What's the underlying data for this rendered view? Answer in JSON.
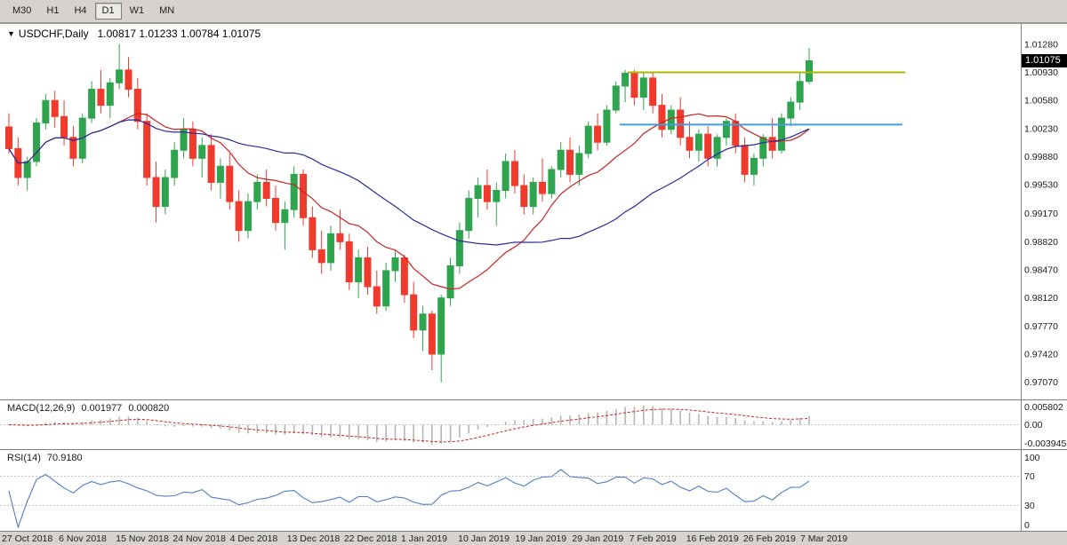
{
  "app": {
    "toolbar": {
      "timeframes": [
        {
          "label": "M30",
          "active": false
        },
        {
          "label": "H1",
          "active": false
        },
        {
          "label": "H4",
          "active": false
        },
        {
          "label": "D1",
          "active": true
        },
        {
          "label": "W1",
          "active": false
        },
        {
          "label": "MN",
          "active": false
        }
      ]
    }
  },
  "header": {
    "dropdown_icon": "▼",
    "symbol": "USDCHF,Daily",
    "ohlc": "1.00817 1.01233 1.00784 1.01075"
  },
  "price_axis": {
    "ticks": [
      "1.01280",
      "1.00930",
      "1.00580",
      "1.00230",
      "0.99880",
      "0.99530",
      "0.99170",
      "0.98820",
      "0.98470",
      "0.98120",
      "0.97770",
      "0.97420",
      "0.97070"
    ],
    "current_price": "1.01075"
  },
  "indicators": {
    "macd": {
      "title": "MACD(12,26,9)",
      "value_main": "0.001977",
      "value_signal": "0.000820",
      "axis_ticks": [
        "0.005802",
        "0.00",
        "-0.003945"
      ]
    },
    "rsi": {
      "title": "RSI(14)",
      "value": "70.9180",
      "axis_ticks": [
        "100",
        "70",
        "30",
        "0"
      ]
    }
  },
  "colors": {
    "bull": "#2fa44f",
    "bear": "#ef3a2d",
    "ma_fast": "#c92323",
    "ma_slow": "#2b2b99",
    "macd_hist": "#b5b5b5",
    "macd_signal": "#d02020",
    "rsi_line": "#4f7fbf",
    "hline_yellow": "#adb800",
    "hline_blue": "#3f9fdf",
    "axis_text": "#1a1a1a",
    "chrome": "#d6d3ce",
    "separator": "#808080"
  },
  "chart_data": {
    "type": "candlestick",
    "symbol": "USDCHF",
    "timeframe": "Daily",
    "title": "USDCHF,Daily",
    "last_bar_ohlc": {
      "open": 1.00817,
      "high": 1.01233,
      "low": 1.00784,
      "close": 1.01075
    },
    "ylim": [
      0.969,
      1.015
    ],
    "x_tick_labels": [
      "27 Oct 2018",
      "6 Nov 2018",
      "15 Nov 2018",
      "24 Nov 2018",
      "4 Dec 2018",
      "13 Dec 2018",
      "22 Dec 2018",
      "1 Jan 2019",
      "10 Jan 2019",
      "19 Jan 2019",
      "29 Jan 2019",
      "7 Feb 2019",
      "16 Feb 2019",
      "26 Feb 2019",
      "7 Mar 2019"
    ],
    "candles": [
      [
        1.0025,
        1.0042,
        0.9992,
        0.9998
      ],
      [
        0.9998,
        1.0012,
        0.9952,
        0.9962
      ],
      [
        0.9962,
        0.9988,
        0.9946,
        0.9982
      ],
      [
        0.9982,
        1.0036,
        0.9976,
        1.003
      ],
      [
        1.003,
        1.0066,
        1.0022,
        1.0058
      ],
      [
        1.0058,
        1.007,
        1.0024,
        1.0038
      ],
      [
        1.0038,
        1.0058,
        1.0002,
        1.0012
      ],
      [
        1.0012,
        1.0026,
        0.9976,
        0.9986
      ],
      [
        0.9986,
        1.0042,
        0.998,
        1.0036
      ],
      [
        1.0036,
        1.0082,
        1.003,
        1.0072
      ],
      [
        1.0072,
        1.0096,
        1.0042,
        1.0052
      ],
      [
        1.0052,
        1.0086,
        1.0036,
        1.008
      ],
      [
        1.008,
        1.0128,
        1.0072,
        1.0096
      ],
      [
        1.0096,
        1.0112,
        1.0062,
        1.0072
      ],
      [
        1.0072,
        1.0086,
        1.0022,
        1.0032
      ],
      [
        1.0032,
        1.0042,
        0.9952,
        0.9962
      ],
      [
        0.9962,
        0.9982,
        0.9906,
        0.9926
      ],
      [
        0.9926,
        0.9972,
        0.9916,
        0.9962
      ],
      [
        0.9962,
        1.0006,
        0.9952,
        0.9996
      ],
      [
        0.9996,
        1.0036,
        0.9986,
        1.0022
      ],
      [
        1.0022,
        1.0032,
        0.9976,
        0.9986
      ],
      [
        0.9986,
        1.0012,
        0.9962,
        1.0002
      ],
      [
        1.0002,
        1.0016,
        0.9946,
        0.9956
      ],
      [
        0.9956,
        0.9986,
        0.9936,
        0.9976
      ],
      [
        0.9976,
        0.9992,
        0.9922,
        0.9932
      ],
      [
        0.9932,
        0.9946,
        0.9882,
        0.9896
      ],
      [
        0.9896,
        0.9942,
        0.9886,
        0.9932
      ],
      [
        0.9932,
        0.9966,
        0.9922,
        0.9956
      ],
      [
        0.9956,
        0.9972,
        0.9926,
        0.9936
      ],
      [
        0.9936,
        0.9952,
        0.9896,
        0.9906
      ],
      [
        0.9906,
        0.9932,
        0.9872,
        0.9922
      ],
      [
        0.9922,
        0.9976,
        0.9912,
        0.9966
      ],
      [
        0.9966,
        0.9972,
        0.9902,
        0.9912
      ],
      [
        0.9912,
        0.9926,
        0.9862,
        0.9872
      ],
      [
        0.9872,
        0.9896,
        0.9842,
        0.9856
      ],
      [
        0.9856,
        0.9902,
        0.9846,
        0.9892
      ],
      [
        0.9892,
        0.9922,
        0.9872,
        0.9882
      ],
      [
        0.9882,
        0.9892,
        0.9822,
        0.9832
      ],
      [
        0.9832,
        0.9872,
        0.9812,
        0.9862
      ],
      [
        0.9862,
        0.9876,
        0.9816,
        0.9826
      ],
      [
        0.9826,
        0.9846,
        0.9792,
        0.9802
      ],
      [
        0.9802,
        0.9856,
        0.9796,
        0.9846
      ],
      [
        0.9846,
        0.9872,
        0.9832,
        0.9862
      ],
      [
        0.9862,
        0.9866,
        0.9806,
        0.9816
      ],
      [
        0.9816,
        0.9832,
        0.9762,
        0.9772
      ],
      [
        0.9772,
        0.9802,
        0.9746,
        0.9792
      ],
      [
        0.9792,
        0.9796,
        0.9722,
        0.9742
      ],
      [
        0.9742,
        0.9816,
        0.9707,
        0.9812
      ],
      [
        0.9812,
        0.9862,
        0.9802,
        0.9852
      ],
      [
        0.9852,
        0.9906,
        0.9842,
        0.9896
      ],
      [
        0.9896,
        0.9946,
        0.9886,
        0.9936
      ],
      [
        0.9936,
        0.9962,
        0.9912,
        0.9952
      ],
      [
        0.9952,
        0.9972,
        0.9922,
        0.9932
      ],
      [
        0.9932,
        0.9956,
        0.9902,
        0.9946
      ],
      [
        0.9946,
        0.9992,
        0.9936,
        0.9982
      ],
      [
        0.9982,
        0.9996,
        0.9942,
        0.9952
      ],
      [
        0.9952,
        0.9966,
        0.9916,
        0.9926
      ],
      [
        0.9926,
        0.9962,
        0.9916,
        0.9956
      ],
      [
        0.9956,
        0.9986,
        0.9932,
        0.9942
      ],
      [
        0.9942,
        0.9976,
        0.9936,
        0.9972
      ],
      [
        0.9972,
        1.0006,
        0.9962,
        0.9996
      ],
      [
        0.9996,
        1.0012,
        0.9956,
        0.9966
      ],
      [
        0.9966,
        1.0002,
        0.9952,
        0.9992
      ],
      [
        0.9992,
        1.0032,
        0.9986,
        1.0026
      ],
      [
        1.0026,
        1.0042,
        0.9996,
        1.0006
      ],
      [
        1.0006,
        1.0052,
        1.0002,
        1.0046
      ],
      [
        1.0046,
        1.0082,
        1.0042,
        1.0076
      ],
      [
        1.0076,
        1.0096,
        1.0056,
        1.0092
      ],
      [
        1.0092,
        1.0096,
        1.0052,
        1.0062
      ],
      [
        1.0062,
        1.0092,
        1.0046,
        1.0086
      ],
      [
        1.0086,
        1.0094,
        1.0042,
        1.0052
      ],
      [
        1.0052,
        1.0066,
        1.0012,
        1.0022
      ],
      [
        1.0022,
        1.0052,
        1.0016,
        1.0046
      ],
      [
        1.0046,
        1.0062,
        1.0002,
        1.0012
      ],
      [
        1.0012,
        1.0032,
        0.9986,
        0.9996
      ],
      [
        0.9996,
        1.0022,
        0.9982,
        1.0016
      ],
      [
        1.0016,
        1.0026,
        0.9976,
        0.9986
      ],
      [
        0.9986,
        1.0016,
        0.9976,
        1.0012
      ],
      [
        1.0012,
        1.0036,
        1.0002,
        1.0032
      ],
      [
        1.0032,
        1.0042,
        0.9992,
        1.0002
      ],
      [
        1.0002,
        1.0012,
        0.9956,
        0.9966
      ],
      [
        0.9966,
        0.9992,
        0.9952,
        0.9986
      ],
      [
        0.9986,
        1.0016,
        0.9976,
        1.0012
      ],
      [
        1.0012,
        1.0036,
        0.9986,
        0.9996
      ],
      [
        0.9996,
        1.0042,
        0.9992,
        1.0036
      ],
      [
        1.0036,
        1.0062,
        1.0026,
        1.0056
      ],
      [
        1.0056,
        1.0092,
        1.0046,
        1.00817
      ],
      [
        1.00817,
        1.01233,
        1.00784,
        1.01075
      ]
    ],
    "overlays": {
      "moving_averages": [
        {
          "name": "ma-fast",
          "period": 13,
          "color_ref": "ma_fast"
        },
        {
          "name": "ma-slow",
          "period": 30,
          "color_ref": "ma_slow"
        }
      ],
      "horizontal_lines": [
        {
          "price": 1.0093,
          "color_ref": "hline_yellow",
          "x_start_frac": 0.615,
          "x_end_frac": 0.887
        },
        {
          "price": 1.0028,
          "color_ref": "hline_blue",
          "x_start_frac": 0.607,
          "x_end_frac": 0.884
        }
      ]
    },
    "indicator_panes": [
      {
        "type": "macd",
        "fast": 12,
        "slow": 26,
        "signal": 9,
        "last_values": [
          0.001977,
          0.00082
        ]
      },
      {
        "type": "rsi",
        "period": 14,
        "last_value": 70.918,
        "levels": [
          70,
          30
        ],
        "range": [
          0,
          100
        ]
      }
    ]
  }
}
